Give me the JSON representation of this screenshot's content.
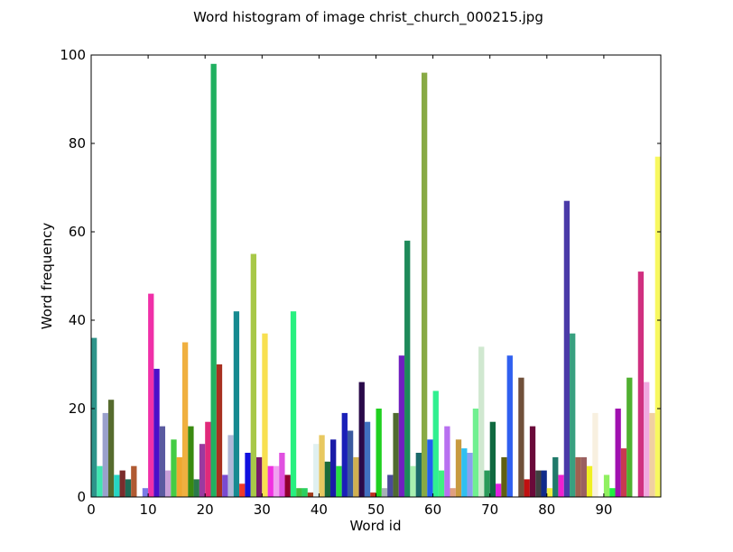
{
  "chart_data": {
    "type": "bar",
    "title": "Word histogram of image christ_church_000215.jpg",
    "xlabel": "Word id",
    "ylabel": "Word frequency",
    "xlim": [
      0,
      100
    ],
    "ylim": [
      0,
      100
    ],
    "xticks": [
      0,
      10,
      20,
      30,
      40,
      50,
      60,
      70,
      80,
      90
    ],
    "yticks": [
      0,
      20,
      40,
      60,
      80,
      100
    ],
    "grid": false,
    "legend": "none",
    "x": [
      0,
      1,
      2,
      3,
      4,
      5,
      6,
      7,
      8,
      9,
      10,
      11,
      12,
      13,
      14,
      15,
      16,
      17,
      18,
      19,
      20,
      21,
      22,
      23,
      24,
      25,
      26,
      27,
      28,
      29,
      30,
      31,
      32,
      33,
      34,
      35,
      36,
      37,
      38,
      39,
      40,
      41,
      42,
      43,
      44,
      45,
      46,
      47,
      48,
      49,
      50,
      51,
      52,
      53,
      54,
      55,
      56,
      57,
      58,
      59,
      60,
      61,
      62,
      63,
      64,
      65,
      66,
      67,
      68,
      69,
      70,
      71,
      72,
      73,
      74,
      75,
      76,
      77,
      78,
      79,
      80,
      81,
      82,
      83,
      84,
      85,
      86,
      87,
      88,
      89,
      90,
      91,
      92,
      93,
      94,
      95,
      96,
      97,
      98,
      99
    ],
    "values": [
      36,
      7,
      19,
      22,
      5,
      6,
      4,
      7,
      0,
      2,
      46,
      29,
      16,
      6,
      13,
      9,
      35,
      16,
      4,
      12,
      17,
      98,
      30,
      5,
      14,
      42,
      3,
      10,
      55,
      9,
      37,
      7,
      7,
      10,
      5,
      42,
      2,
      2,
      1,
      12,
      14,
      8,
      13,
      7,
      19,
      15,
      9,
      26,
      17,
      1,
      20,
      2,
      5,
      19,
      32,
      58,
      7,
      10,
      96,
      13,
      24,
      6,
      16,
      2,
      13,
      11,
      10,
      20,
      34,
      6,
      17,
      3,
      9,
      32,
      0,
      27,
      4,
      16,
      6,
      6,
      2,
      9,
      5,
      67,
      37,
      9,
      9,
      7,
      19,
      0,
      5,
      2,
      20,
      11,
      27,
      0,
      51,
      26,
      19,
      77
    ],
    "colors": [
      "#2e948a",
      "#3fe6b0",
      "#9aa0cc",
      "#566b2e",
      "#25d6c4",
      "#7a2c2c",
      "#1e6b57",
      "#b05a32",
      "#ffffff",
      "#7a7ae6",
      "#f030a8",
      "#4a10c8",
      "#5a5aa0",
      "#c8a0d8",
      "#44cc44",
      "#f0a830",
      "#f0b040",
      "#3a8a10",
      "#2a7a4a",
      "#9a3aa0",
      "#e02a7a",
      "#20b060",
      "#a83020",
      "#7a4ad0",
      "#b0b8d8",
      "#168a90",
      "#f03a2a",
      "#1010e0",
      "#a8c848",
      "#7a1a6a",
      "#f8e050",
      "#f030e0",
      "#f0a0f0",
      "#e050e0",
      "#900030",
      "#28f080",
      "#40c040",
      "#2ad060",
      "#a03a1a",
      "#e0f0f0",
      "#e8c860",
      "#1a6a3a",
      "#1a1aa8",
      "#28e040",
      "#1a20b8",
      "#3a5aa0",
      "#d0b050",
      "#2a0a4a",
      "#4070c0",
      "#c03020",
      "#20d020",
      "#a8b0b8",
      "#4a4a9a",
      "#506a30",
      "#7020c0",
      "#1e8a5a",
      "#a8f0b0",
      "#1a6a6a",
      "#88aa44",
      "#2060f0",
      "#30f090",
      "#40f080",
      "#b870f0",
      "#e0a080",
      "#c89a40",
      "#30c0f0",
      "#8aa0f0",
      "#70f090",
      "#d0e8d0",
      "#2a9a5a",
      "#106a40",
      "#e020e0",
      "#606010",
      "#3060f0",
      "#ffffff",
      "#70503a",
      "#c01010",
      "#6a0a3a",
      "#404040",
      "#102a8a",
      "#f0f040",
      "#207a6a",
      "#f020d0",
      "#4a3aa8",
      "#38a080",
      "#a06050",
      "#9a6060",
      "#f0f020",
      "#f8f0e0",
      "#ffffff",
      "#90f060",
      "#20f040",
      "#a010b0",
      "#c83a50",
      "#50b030",
      "#ffffff",
      "#d03080",
      "#f0a8e0",
      "#f0d0a0",
      "#f8f860"
    ]
  }
}
